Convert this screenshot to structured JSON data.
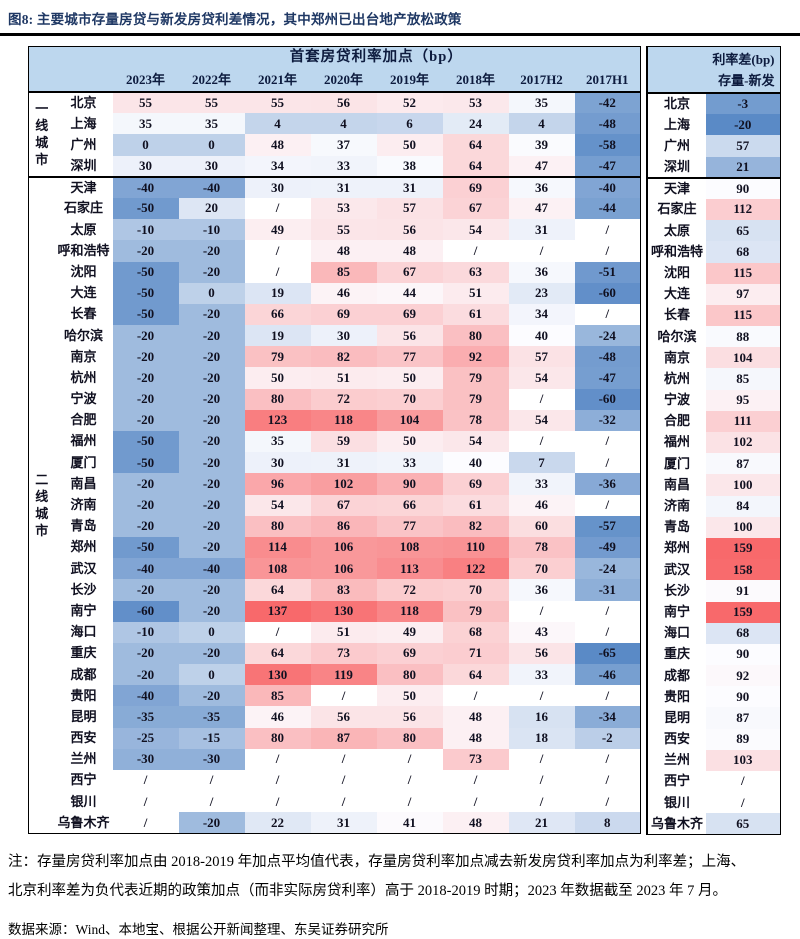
{
  "title": "图8:  主要城市存量房贷与新发房贷利差情况，其中郑州已出台地产放松政策",
  "chart_data": {
    "type": "heatmap",
    "title": "首套房贷利率加点（bp）",
    "columns": [
      "2023年",
      "2022年",
      "2021年",
      "2020年",
      "2019年",
      "2018年",
      "2017H2",
      "2017H1"
    ],
    "diff_header_line1": "利率差(bp)",
    "diff_header_line2": "存量-新发",
    "no_data_marker": "/",
    "groups": [
      {
        "label": "一线城市",
        "rows": [
          {
            "city": "北京",
            "values": [
              "55",
              "55",
              "55",
              "56",
              "52",
              "53",
              "35",
              "-42"
            ],
            "diff": "-3"
          },
          {
            "city": "上海",
            "values": [
              "35",
              "35",
              "4",
              "4",
              "6",
              "24",
              "4",
              "-48"
            ],
            "diff": "-20"
          },
          {
            "city": "广州",
            "values": [
              "0",
              "0",
              "48",
              "37",
              "50",
              "64",
              "39",
              "-58"
            ],
            "diff": "57"
          },
          {
            "city": "深圳",
            "values": [
              "30",
              "30",
              "34",
              "33",
              "38",
              "64",
              "47",
              "-47"
            ],
            "diff": "21"
          }
        ]
      },
      {
        "label": "二线城市",
        "rows": [
          {
            "city": "天津",
            "values": [
              "-40",
              "-40",
              "30",
              "31",
              "31",
              "69",
              "36",
              "-40"
            ],
            "diff": "90"
          },
          {
            "city": "石家庄",
            "values": [
              "-50",
              "20",
              "/",
              "53",
              "57",
              "67",
              "47",
              "-44"
            ],
            "diff": "112"
          },
          {
            "city": "太原",
            "values": [
              "-10",
              "-10",
              "49",
              "55",
              "56",
              "54",
              "31",
              "/"
            ],
            "diff": "65"
          },
          {
            "city": "呼和浩特",
            "values": [
              "-20",
              "-20",
              "/",
              "48",
              "48",
              "/",
              "/",
              "/"
            ],
            "diff": "68"
          },
          {
            "city": "沈阳",
            "values": [
              "-50",
              "-20",
              "/",
              "85",
              "67",
              "63",
              "36",
              "-51"
            ],
            "diff": "115"
          },
          {
            "city": "大连",
            "values": [
              "-50",
              "0",
              "19",
              "46",
              "44",
              "51",
              "23",
              "-60"
            ],
            "diff": "97"
          },
          {
            "city": "长春",
            "values": [
              "-50",
              "-20",
              "66",
              "69",
              "69",
              "61",
              "34",
              "/"
            ],
            "diff": "115"
          },
          {
            "city": "哈尔滨",
            "values": [
              "-20",
              "-20",
              "19",
              "30",
              "56",
              "80",
              "40",
              "-24"
            ],
            "diff": "88"
          },
          {
            "city": "南京",
            "values": [
              "-20",
              "-20",
              "79",
              "82",
              "77",
              "92",
              "57",
              "-48"
            ],
            "diff": "104"
          },
          {
            "city": "杭州",
            "values": [
              "-20",
              "-20",
              "50",
              "51",
              "50",
              "79",
              "54",
              "-47"
            ],
            "diff": "85"
          },
          {
            "city": "宁波",
            "values": [
              "-20",
              "-20",
              "80",
              "72",
              "70",
              "79",
              "/",
              "-60"
            ],
            "diff": "95"
          },
          {
            "city": "合肥",
            "values": [
              "-20",
              "-20",
              "123",
              "118",
              "104",
              "78",
              "54",
              "-32"
            ],
            "diff": "111"
          },
          {
            "city": "福州",
            "values": [
              "-50",
              "-20",
              "35",
              "59",
              "50",
              "54",
              "/",
              "/"
            ],
            "diff": "102"
          },
          {
            "city": "厦门",
            "values": [
              "-50",
              "-20",
              "30",
              "31",
              "33",
              "40",
              "7",
              "/"
            ],
            "diff": "87"
          },
          {
            "city": "南昌",
            "values": [
              "-20",
              "-20",
              "96",
              "102",
              "90",
              "69",
              "33",
              "-36"
            ],
            "diff": "100"
          },
          {
            "city": "济南",
            "values": [
              "-20",
              "-20",
              "54",
              "67",
              "66",
              "61",
              "46",
              "/"
            ],
            "diff": "84"
          },
          {
            "city": "青岛",
            "values": [
              "-20",
              "-20",
              "80",
              "86",
              "77",
              "82",
              "60",
              "-57"
            ],
            "diff": "100"
          },
          {
            "city": "郑州",
            "values": [
              "-50",
              "-20",
              "114",
              "106",
              "108",
              "110",
              "78",
              "-49"
            ],
            "diff": "159"
          },
          {
            "city": "武汉",
            "values": [
              "-40",
              "-40",
              "108",
              "106",
              "113",
              "122",
              "70",
              "-24"
            ],
            "diff": "158"
          },
          {
            "city": "长沙",
            "values": [
              "-20",
              "-20",
              "64",
              "83",
              "72",
              "70",
              "36",
              "-31"
            ],
            "diff": "91"
          },
          {
            "city": "南宁",
            "values": [
              "-60",
              "-20",
              "137",
              "130",
              "118",
              "79",
              "/",
              "/"
            ],
            "diff": "159"
          },
          {
            "city": "海口",
            "values": [
              "-10",
              "0",
              "/",
              "51",
              "49",
              "68",
              "43",
              "/"
            ],
            "diff": "68"
          },
          {
            "city": "重庆",
            "values": [
              "-20",
              "-20",
              "64",
              "73",
              "69",
              "71",
              "56",
              "-65"
            ],
            "diff": "90"
          },
          {
            "city": "成都",
            "values": [
              "-20",
              "0",
              "130",
              "119",
              "80",
              "64",
              "33",
              "-46"
            ],
            "diff": "92"
          },
          {
            "city": "贵阳",
            "values": [
              "-40",
              "-20",
              "85",
              "/",
              "50",
              "/",
              "/",
              "/"
            ],
            "diff": "90"
          },
          {
            "city": "昆明",
            "values": [
              "-35",
              "-35",
              "46",
              "56",
              "56",
              "48",
              "16",
              "-34"
            ],
            "diff": "87"
          },
          {
            "city": "西安",
            "values": [
              "-25",
              "-15",
              "80",
              "87",
              "80",
              "48",
              "18",
              "-2"
            ],
            "diff": "89"
          },
          {
            "city": "兰州",
            "values": [
              "-30",
              "-30",
              "/",
              "/",
              "/",
              "73",
              "/",
              "/"
            ],
            "diff": "103"
          },
          {
            "city": "西宁",
            "values": [
              "/",
              "/",
              "/",
              "/",
              "/",
              "/",
              "/",
              "/"
            ],
            "diff": "/"
          },
          {
            "city": "银川",
            "values": [
              "/",
              "/",
              "/",
              "/",
              "/",
              "/",
              "/",
              "/"
            ],
            "diff": "/"
          },
          {
            "city": "乌鲁木齐",
            "values": [
              "/",
              "-20",
              "22",
              "31",
              "41",
              "48",
              "21",
              "8"
            ],
            "diff": "65"
          }
        ]
      }
    ],
    "color_scale_main": {
      "min": -65,
      "mid": 40,
      "max": 137
    },
    "color_scale_diff": {
      "min": -20,
      "mid": 90,
      "max": 159
    }
  },
  "colors": {
    "header_bg": "#BDD7EE",
    "title_color": "#1F3864",
    "scale_low": "#5A8AC6",
    "scale_mid": "#FCFCFF",
    "scale_high": "#F8696B",
    "no_data_bg": "#FFFFFF",
    "border": "#000000"
  },
  "notes": {
    "line1": "注：存量房贷利率加点由 2018-2019 年加点平均值代表，存量房贷利率加点减去新发房贷利率加点为利率差；上海、",
    "line2": "北京利率差为负代表近期的政策加点（而非实际房贷利率）高于 2018-2019 时期；2023 年数据截至 2023 年 7 月。",
    "source": "数据来源：Wind、本地宝、根据公开新闻整理、东吴证券研究所"
  }
}
